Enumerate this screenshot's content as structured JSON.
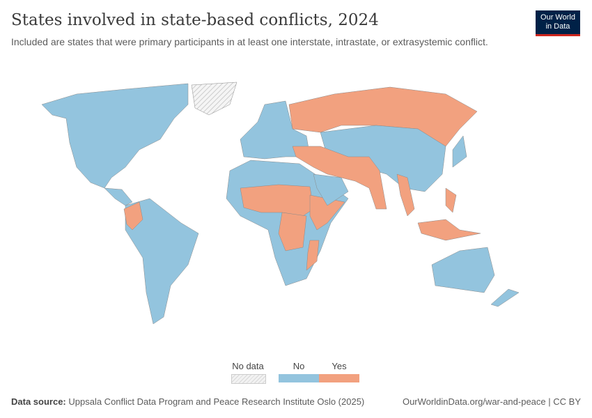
{
  "header": {
    "title": "States involved in state-based conflicts, 2024",
    "subtitle": "Included are states that were primary participants in at least one interstate, intrastate, or extrasystemic conflict."
  },
  "logo": {
    "line1": "Our World",
    "line2": "in Data"
  },
  "legend": {
    "items": [
      {
        "label": "No data",
        "color": "#e0e0e0"
      },
      {
        "label": "No",
        "color": "#93c4de"
      },
      {
        "label": "Yes",
        "color": "#f2a17f"
      }
    ]
  },
  "map_data": {
    "yes_countries": [
      "Russia",
      "Ukraine",
      "Turkey",
      "Syria",
      "Israel",
      "Iraq",
      "Iran",
      "Yemen",
      "Afghanistan",
      "Pakistan",
      "India",
      "Myanmar",
      "Thailand",
      "Philippines",
      "Indonesia",
      "Papua New Guinea",
      "Colombia",
      "Mali",
      "Burkina Faso",
      "Niger",
      "Nigeria",
      "Cameroon",
      "Chad",
      "Sudan",
      "Ethiopia",
      "Somalia",
      "Kenya",
      "Democratic Republic of Congo",
      "Uganda",
      "Burundi",
      "Mozambique"
    ]
  },
  "footer": {
    "source_label": "Data source:",
    "source": "Uppsala Conflict Data Program and Peace Research Institute Oslo (2025)",
    "link": "OurWorldinData.org/war-and-peace",
    "license": "| CC BY"
  }
}
